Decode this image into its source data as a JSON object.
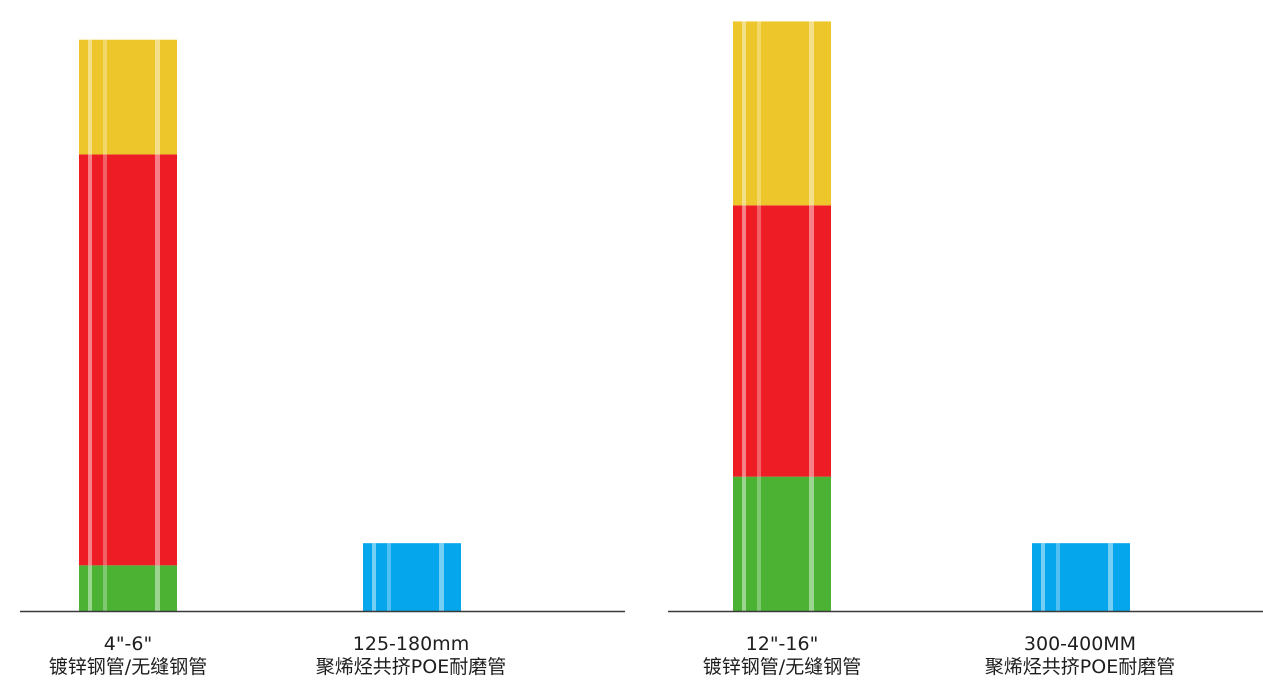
{
  "chart_data": [
    {
      "type": "bar",
      "categories": [
        {
          "line1": "4\"-6\"",
          "line2": "镀锌钢管/无缝钢管"
        },
        {
          "line1": "125-180mm",
          "line2": "聚烯烃共挤POE耐磨管"
        }
      ],
      "bars": [
        {
          "segments": [
            {
              "value": 3.5,
              "color": "#4bb234"
            },
            {
              "value": 31.5,
              "color": "#ee1c25"
            },
            {
              "value": 8.8,
              "color": "#ecc62b"
            }
          ]
        },
        {
          "segments": [
            {
              "value": 5.2,
              "color": "#05a6ec"
            }
          ]
        }
      ],
      "ylim": [
        0,
        46
      ]
    },
    {
      "type": "bar",
      "categories": [
        {
          "line1": "12\"-16\"",
          "line2": "镀锌钢管/无缝钢管"
        },
        {
          "line1": "300-400MM",
          "line2": "聚烯烃共挤POE耐磨管"
        }
      ],
      "bars": [
        {
          "segments": [
            {
              "value": 10.3,
              "color": "#4bb234"
            },
            {
              "value": 20.8,
              "color": "#ee1c25"
            },
            {
              "value": 14.1,
              "color": "#ecc62b"
            }
          ]
        },
        {
          "segments": [
            {
              "value": 5.2,
              "color": "#05a6ec"
            }
          ]
        }
      ],
      "ylim": [
        0,
        46
      ]
    }
  ]
}
